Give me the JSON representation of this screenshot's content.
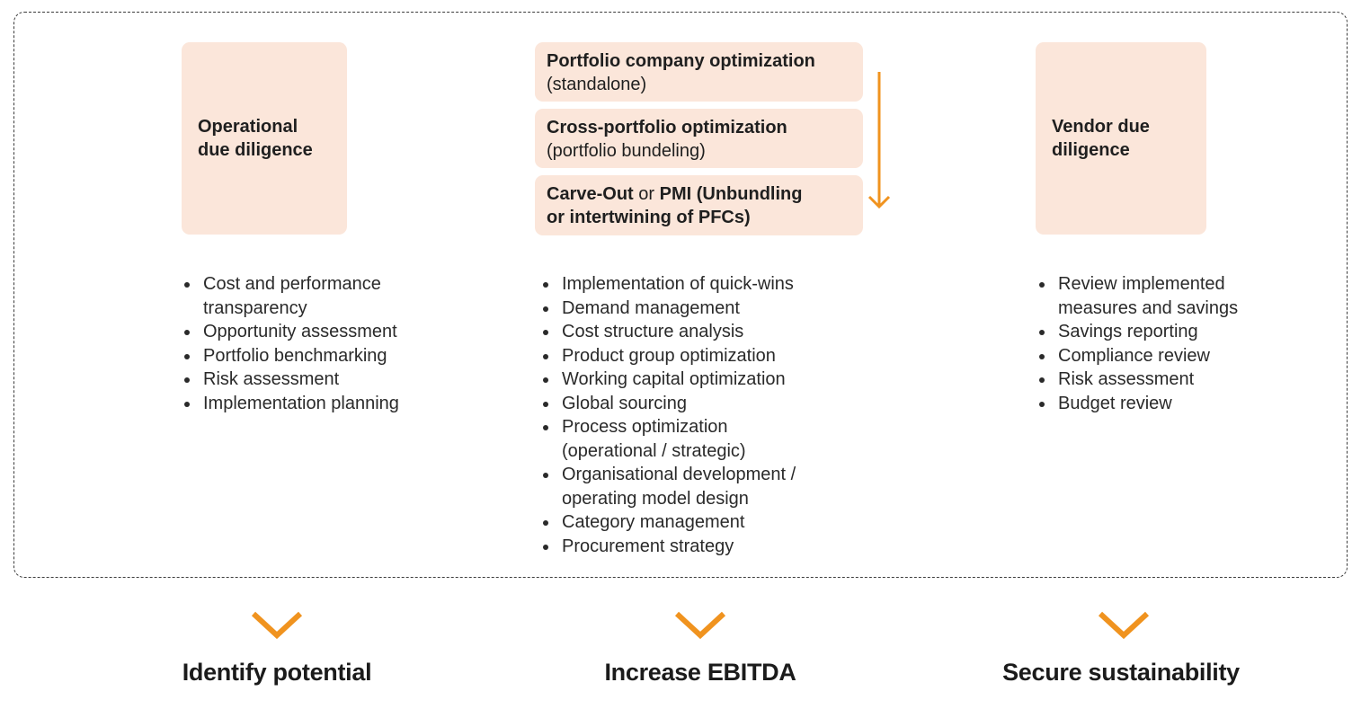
{
  "left": {
    "title": [
      "Operational",
      "due diligence"
    ],
    "bullets": [
      "Cost and performance transparency",
      "Opportunity assessment",
      "Portfolio benchmarking",
      "Risk assessment",
      "Implementation planning"
    ]
  },
  "middle": {
    "box1": {
      "bold": "Portfolio company optimization",
      "normal": "(standalone)"
    },
    "box2": {
      "bold": "Cross-portfolio optimization",
      "normal": "(portfolio bundeling)"
    },
    "box3": {
      "bold_a": "Carve-Out",
      "connector": "or",
      "bold_b": "PMI (Unbundling",
      "line2": "or intertwining of PFCs)"
    },
    "bullets": [
      "Implementation of quick-wins",
      "Demand management",
      "Cost structure analysis",
      "Product group optimization",
      "Working capital optimization",
      "Global sourcing",
      "Process optimization (operational / strategic)",
      "Organisational development / operating model design",
      "Category management",
      "Procurement strategy"
    ]
  },
  "right": {
    "title": [
      "Vendor due",
      "diligence"
    ],
    "bullets": [
      "Review implemented measures and savings",
      "Savings reporting",
      "Compliance review",
      "Risk assessment",
      "Budget review"
    ]
  },
  "outcomes": [
    "Identify potential",
    "Increase EBITDA",
    "Secure sustainability"
  ],
  "colors": {
    "box_fill": "#fbe6da",
    "accent": "#f0931f",
    "text": "#1f1f1f"
  },
  "icons": {
    "flow_arrow": "arrow-down-icon",
    "outcome_marker": "chevron-down-icon"
  }
}
